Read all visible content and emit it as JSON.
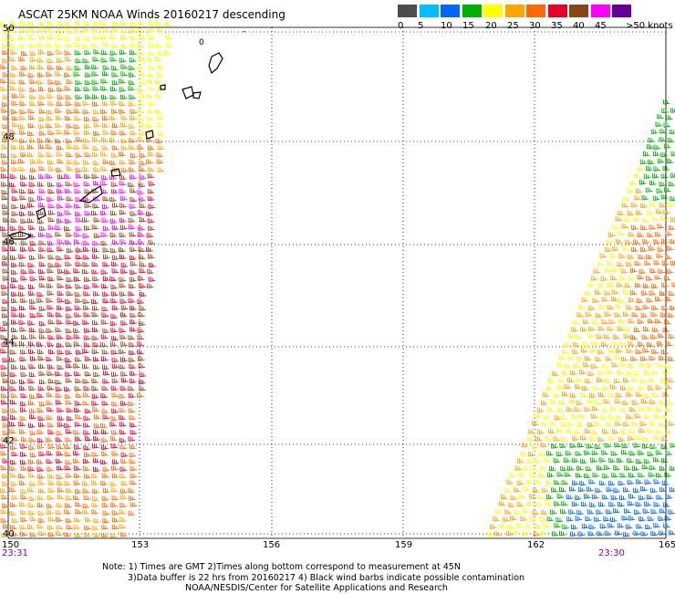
{
  "title": "ASCAT 25KM NOAA Winds 20160217 descending",
  "legend": {
    "colors": [
      "#4d4d4d",
      "#00bfff",
      "#0066ff",
      "#00b000",
      "#ffff00",
      "#ffa500",
      "#ff6a00",
      "#e8002a",
      "#8b4513",
      "#ff00ff",
      "#660099"
    ],
    "labels": [
      "0",
      "5",
      "10",
      "15",
      "20",
      "25",
      "30",
      "35",
      "40",
      "45",
      ">50 knots"
    ]
  },
  "axes": {
    "lon_labels": [
      "150",
      "153",
      "156",
      "159",
      "162",
      "165"
    ],
    "lat_labels": [
      "50",
      "48",
      "46",
      "44",
      "42",
      "40"
    ]
  },
  "swath_times": [
    "23:31",
    "23:30"
  ],
  "notes": [
    "Note: 1) Times are GMT 2)Times along bottom correspond to measurement at 45N",
    "3)Data buffer is 22 hrs from 20160217 4) Black wind barbs indicate possible contamination",
    "NOAA/NESDIS/Center for Satellite Applications and Research"
  ],
  "map_data": {
    "lon_range": [
      150,
      165
    ],
    "lat_range": [
      40,
      50
    ],
    "grid": "dotted",
    "wind_speed_unit": "knots"
  }
}
